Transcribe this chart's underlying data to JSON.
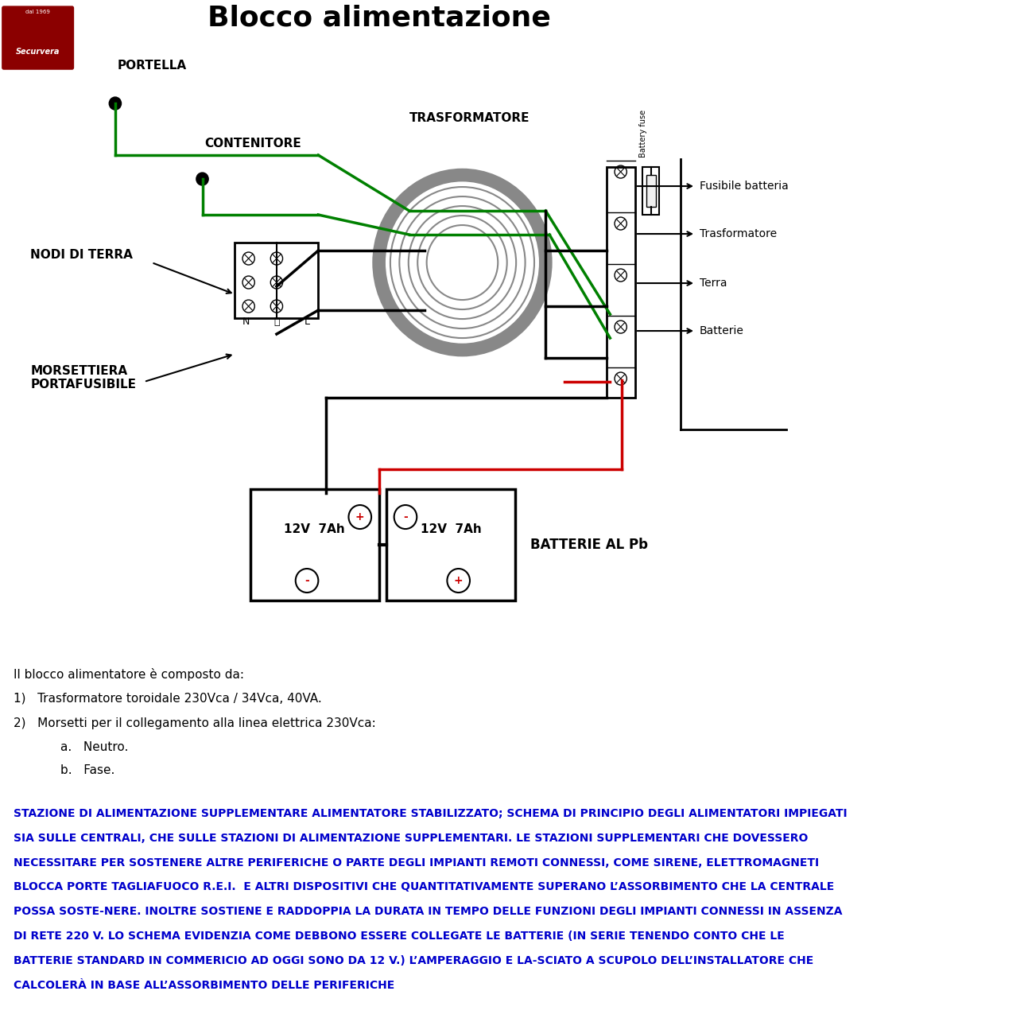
{
  "title": "Blocco alimentazione",
  "logo_text": "Securvera",
  "logo_subtext": "dal 1969",
  "bg_color": "#ffffff",
  "label_portella": "PORTELLA",
  "label_contenitore": "CONTENITORE",
  "label_nodi_terra": "NODI DI TERRA",
  "label_trasformatore": "TRASFORMATORE",
  "label_morsettiera": "MORSETTIERA\nPORTAFUSIBILE",
  "label_batterie": "BATTERIE AL Pb",
  "label_fusibile": "Fusibile batteria",
  "label_trasf2": "Trasformatore",
  "label_terra": "Terra",
  "label_batterie2": "Batterie",
  "label_battery_fuse": "Battery fuse",
  "label_12v_left": "12V  7Ah",
  "label_12v_right": "12V  7Ah",
  "text_description_1": "Il blocco alimentatore è composto da:",
  "text_description_2": "1)   Trasformatore toroidale 230Vca / 34Vca, 40VA.",
  "text_description_3": "2)   Morsetti per il collegamento alla linea elettrica 230Vca:",
  "text_description_4a": "a.   Neutro.",
  "text_description_4b": "b.   Fase.",
  "blue_text": "STAZIONE DI ALIMENTAZIONE SUPPLEMENTARE ALIMENTATORE STABILIZZATO; SCHEMA DI PRINCIPIO DEGLI ALIMENTATORI IMPIEGATI SIA SULLE CENTRALI, CHE SULLE STAZIONI DI ALIMENTAZIONE SUPPLEMENTARI. LE STAZIONI SUPPLEMENTARI CHE DOVESSERO NECESSITARE PER SOSTENERE ALTRE PERIFERICHE O PARTE DEGLI IMPIANTI REMOTI CONNESSI, COME SIRENE, ELETTROMAGNETI BLOCCA PORTE TAGLIAFUOCO R.E.I.  E ALTRI DISPOSITIVI CHE QUANTITATIVAMENTE SUPERANO L’ASSORBIMENTO CHE LA CENTRALE POSSA SOSTE-NERE. INOLTRE SOSTIENE E RADDOPPIA LA DURATA IN TEMPO DELLE FUNZIONI DEGLI IMPIANTI CONNESSI IN ASSENZA DI RETE 220 V. LO SCHEMA EVIDENZIA COME DEBBONO ESSERE COLLEGATE LE BATTERIE (IN SERIE TENENDO CONTO CHE LE BATTERIE STANDARD IN COMMERICIO AD OGGI SONO DA 12 V.) L’AMPERAGGIO E LA-SCIATO A SCUPOLO DELL’INSTALLATORE CHE CALCOLERÀ IN BASE ALL’ASSORBIMENTO DELLE PERIFERICHE",
  "green_color": "#008000",
  "black_color": "#000000",
  "red_color": "#cc0000",
  "blue_color": "#0000cc",
  "gray_color": "#888888",
  "dark_red": "#8B0000"
}
